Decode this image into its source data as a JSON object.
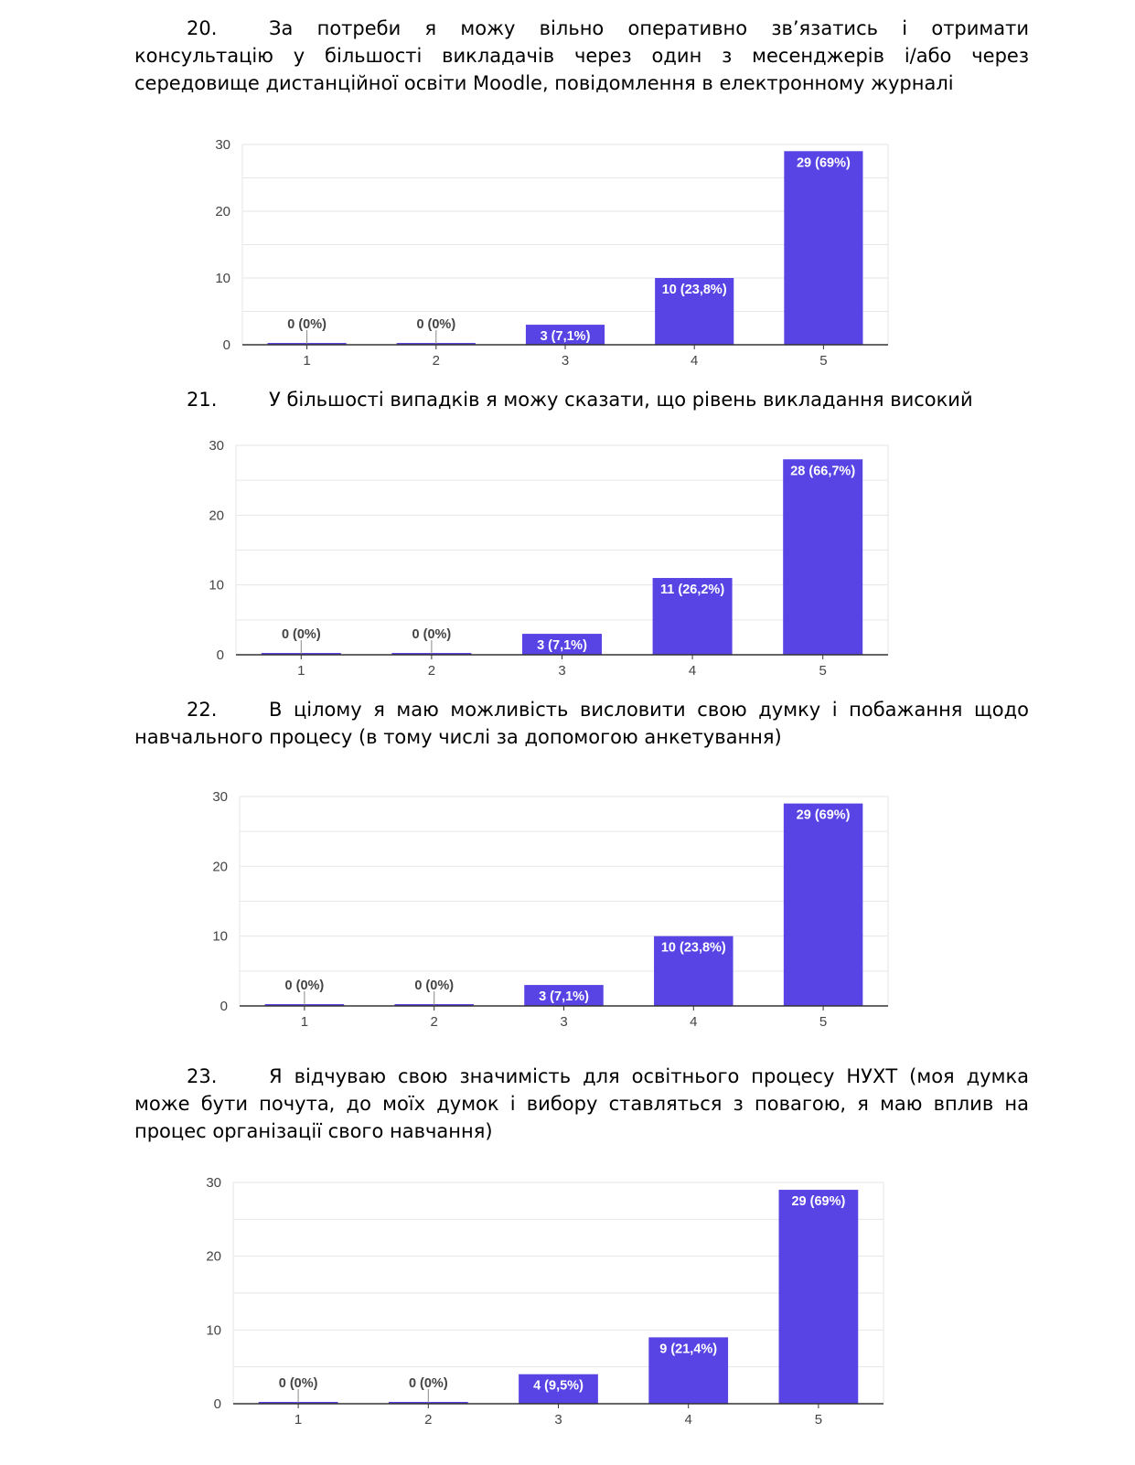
{
  "questions": [
    {
      "number": "20.",
      "text": "За потреби я можу вільно оперативно зв’язатись і отримати консультацію у більшості викладачів через один з месенджерів і/або через середовище дистанційної освіти Moodle, повідомлення в електронному журналі"
    },
    {
      "number": "21.",
      "text": "У більшості випадків я можу сказати, що рівень викладання високий"
    },
    {
      "number": "22.",
      "text": "В цілому я маю можливість висловити свою думку і побажання щодо навчального процесу (в тому числі за допомогою анкетування)"
    },
    {
      "number": "23.",
      "text": "Я відчуваю свою значимість для освітнього процесу НУХТ (моя думка може бути почута, до моїх думок і вибору ставляться з повагою, я маю вплив на процес організації свого навчання)"
    }
  ],
  "colors": {
    "bar": "#5843e4",
    "grid": "#e6e6e6",
    "axis": "#333333",
    "bar_label": "#ffffff",
    "zero_label": "#444444"
  },
  "chart_data": [
    {
      "type": "bar",
      "categories": [
        "1",
        "2",
        "3",
        "4",
        "5"
      ],
      "values": [
        0,
        0,
        3,
        10,
        29
      ],
      "labels": [
        "0 (0%)",
        "0 (0%)",
        "3 (7,1%)",
        "10 (23,8%)",
        "29 (69%)"
      ],
      "ylim": [
        0,
        30
      ],
      "yticks": [
        0,
        10,
        20,
        30
      ],
      "grid": true
    },
    {
      "type": "bar",
      "categories": [
        "1",
        "2",
        "3",
        "4",
        "5"
      ],
      "values": [
        0,
        0,
        3,
        11,
        28
      ],
      "labels": [
        "0 (0%)",
        "0 (0%)",
        "3 (7,1%)",
        "11 (26,2%)",
        "28 (66,7%)"
      ],
      "ylim": [
        0,
        30
      ],
      "yticks": [
        0,
        10,
        20,
        30
      ],
      "grid": true
    },
    {
      "type": "bar",
      "categories": [
        "1",
        "2",
        "3",
        "4",
        "5"
      ],
      "values": [
        0,
        0,
        3,
        10,
        29
      ],
      "labels": [
        "0 (0%)",
        "0 (0%)",
        "3 (7,1%)",
        "10 (23,8%)",
        "29 (69%)"
      ],
      "ylim": [
        0,
        30
      ],
      "yticks": [
        0,
        10,
        20,
        30
      ],
      "grid": true
    },
    {
      "type": "bar",
      "categories": [
        "1",
        "2",
        "3",
        "4",
        "5"
      ],
      "values": [
        0,
        0,
        4,
        9,
        29
      ],
      "labels": [
        "0 (0%)",
        "0 (0%)",
        "4 (9,5%)",
        "9 (21,4%)",
        "29 (69%)"
      ],
      "ylim": [
        0,
        30
      ],
      "yticks": [
        0,
        10,
        20,
        30
      ],
      "grid": true
    }
  ]
}
